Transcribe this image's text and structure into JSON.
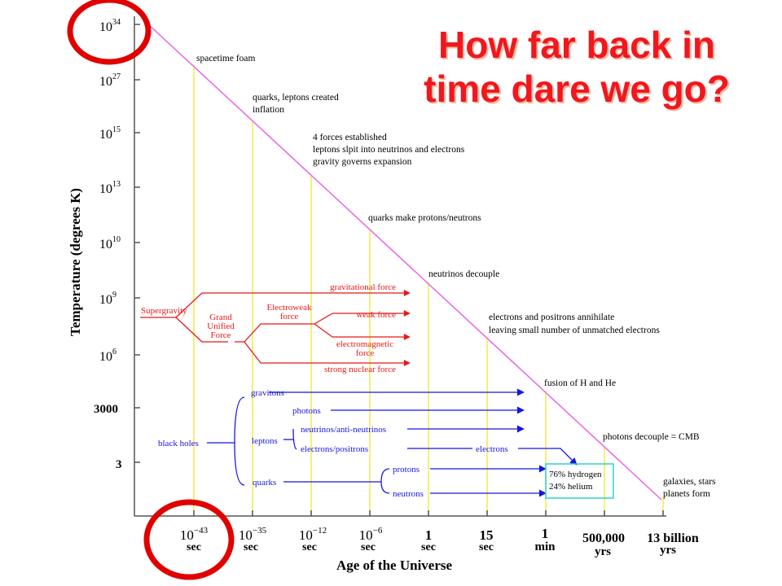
{
  "title": {
    "line1": "How far back in",
    "line2": "time dare we go?"
  },
  "colors": {
    "title": "#f0171e",
    "diagonal": "#e866e6",
    "era_lines": "#f2ea4a",
    "forces": "#e81818",
    "particles": "#1616e0",
    "highlight_box": "#2fd0d0",
    "circles": "#e00000"
  },
  "axes": {
    "ylabel": "Temperature (degrees K)",
    "xlabel": "Age of the Universe",
    "y_ticks": [
      {
        "base": "10",
        "exp": "34"
      },
      {
        "base": "10",
        "exp": "27"
      },
      {
        "base": "10",
        "exp": "15"
      },
      {
        "base": "10",
        "exp": "13"
      },
      {
        "base": "10",
        "exp": "10"
      },
      {
        "base": "10",
        "exp": "9"
      },
      {
        "base": "10",
        "exp": "6"
      },
      {
        "base": "3000",
        "exp": ""
      },
      {
        "base": "3",
        "exp": ""
      }
    ],
    "x_ticks": [
      {
        "main": "10",
        "exp": "−43",
        "unit": "sec"
      },
      {
        "main": "10",
        "exp": "−35",
        "unit": "sec"
      },
      {
        "main": "10",
        "exp": "−12",
        "unit": "sec"
      },
      {
        "main": "10",
        "exp": "−6",
        "unit": "sec"
      },
      {
        "main": "1",
        "exp": "",
        "unit": "sec"
      },
      {
        "main": "15",
        "exp": "",
        "unit": "sec"
      },
      {
        "main": "1",
        "exp": "",
        "unit": "min"
      },
      {
        "main": "500,000",
        "exp": "",
        "unit": "yrs"
      },
      {
        "main": "13 billion",
        "exp": "",
        "unit": "yrs"
      }
    ]
  },
  "events": [
    {
      "lines": [
        "spacetime foam"
      ]
    },
    {
      "lines": [
        "quarks, leptons created",
        "inflation"
      ]
    },
    {
      "lines": [
        "4 forces established",
        "leptons slpit into neutrinos and electrons",
        "gravity governs expansion"
      ]
    },
    {
      "lines": [
        "quarks make protons/neutrons"
      ]
    },
    {
      "lines": [
        "neutrinos decouple"
      ]
    },
    {
      "lines": [
        "electrons and positrons annihilate",
        "leaving small number of unmatched electrons"
      ]
    },
    {
      "lines": [
        "fusion of H and He"
      ]
    },
    {
      "lines": [
        "photons decouple = CMB"
      ]
    },
    {
      "lines": [
        "galaxies, stars",
        "planets form"
      ]
    }
  ],
  "forces": {
    "supergravity": "Supergravity",
    "gut": [
      "Grand",
      "Unified",
      "Force"
    ],
    "electroweak": [
      "Electroweak",
      "force"
    ],
    "gravitational": "gravitational force",
    "weak": "weak force",
    "em": [
      "electromagnetic",
      "force"
    ],
    "strong": "strong nuclear force"
  },
  "particles": {
    "black_holes": "black holes",
    "gravitons": "gravitons",
    "photons": "photons",
    "leptons": "leptons",
    "neutrinos": "neutrinos/anti-neutrinos",
    "electrons_positrons": "electrons/positrons",
    "electrons": "electrons",
    "quarks": "quarks",
    "protons": "protons",
    "neutrons": "neutrons",
    "abundance": [
      "76% hydrogen",
      "24% helium"
    ]
  }
}
